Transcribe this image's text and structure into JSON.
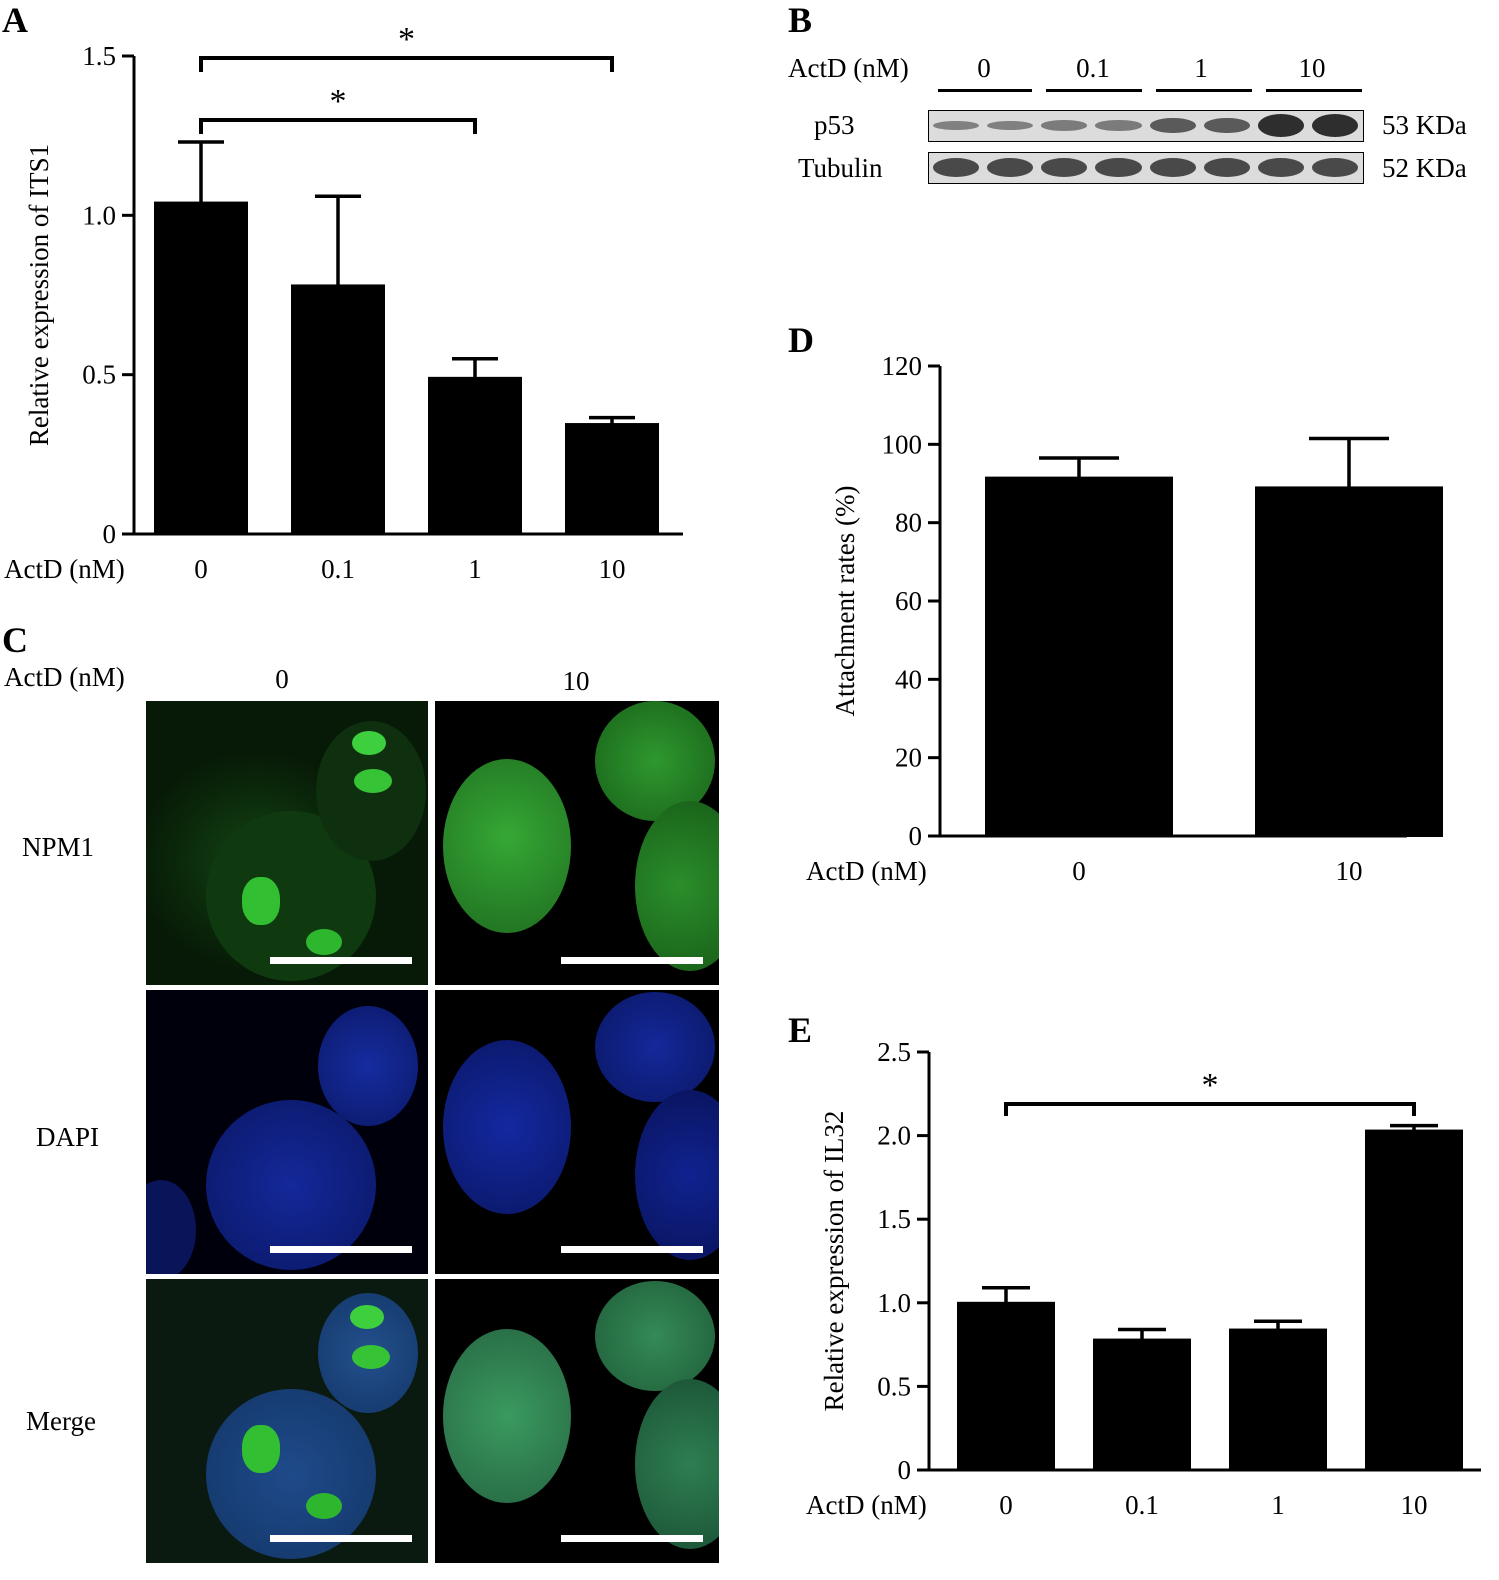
{
  "panels": {
    "A": "A",
    "B": "B",
    "C": "C",
    "D": "D",
    "E": "E"
  },
  "treatment_label": "ActD (nM)",
  "chart_data": [
    {
      "id": "A",
      "type": "bar",
      "categories": [
        "0",
        "0.1",
        "1",
        "10"
      ],
      "values": [
        1.04,
        0.78,
        0.49,
        0.345
      ],
      "errors": [
        0.19,
        0.28,
        0.06,
        0.02
      ],
      "title": "",
      "xlabel": "ActD (nM)",
      "ylabel": "Relative expression of ITS1",
      "ylim": [
        0,
        1.5
      ],
      "yticks": [
        "0",
        "0.5",
        "1.0",
        "1.5"
      ],
      "yticks_values": [
        0,
        0.5,
        1.0,
        1.5
      ],
      "bar_color": "#000000",
      "significance": [
        {
          "from": 0,
          "to": 2,
          "label": "*"
        },
        {
          "from": 0,
          "to": 3,
          "label": "*"
        }
      ]
    },
    {
      "id": "D",
      "type": "bar",
      "categories": [
        "0",
        "10"
      ],
      "values": [
        91.5,
        89
      ],
      "errors": [
        5,
        12.5
      ],
      "title": "",
      "xlabel": "ActD (nM)",
      "ylabel": "Attachment rates (%)",
      "ylim": [
        0,
        120
      ],
      "yticks": [
        "0",
        "20",
        "40",
        "60",
        "80",
        "100",
        "120"
      ],
      "yticks_values": [
        0,
        20,
        40,
        60,
        80,
        100,
        120
      ],
      "bar_color": "#000000",
      "significance": []
    },
    {
      "id": "E",
      "type": "bar",
      "categories": [
        "0",
        "0.1",
        "1",
        "10"
      ],
      "values": [
        1.0,
        0.78,
        0.84,
        2.03
      ],
      "errors": [
        0.09,
        0.06,
        0.05,
        0.03
      ],
      "title": "",
      "xlabel": "ActD (nM)",
      "ylabel": "Relative expression of IL32",
      "ylim": [
        0,
        2.5
      ],
      "yticks": [
        "0",
        "0.5",
        "1.0",
        "1.5",
        "2.0",
        "2.5"
      ],
      "yticks_values": [
        0,
        0.5,
        1.0,
        1.5,
        2.0,
        2.5
      ],
      "bar_color": "#000000",
      "significance": [
        {
          "from": 0,
          "to": 3,
          "label": "*"
        }
      ]
    }
  ],
  "western_blot": {
    "conditions": [
      "0",
      "0.1",
      "1",
      "10"
    ],
    "rows": [
      {
        "protein": "p53",
        "size": "53 KDa",
        "intensity": [
          0.2,
          0.25,
          0.55,
          0.95
        ]
      },
      {
        "protein": "Tubulin",
        "size": "52 KDa",
        "intensity": [
          0.7,
          0.7,
          0.7,
          0.7
        ]
      }
    ]
  },
  "microscopy": {
    "conditions": [
      "0",
      "10"
    ],
    "rows": [
      "NPM1",
      "DAPI",
      "Merge"
    ],
    "channel_colors": {
      "NPM1": "#00c800",
      "DAPI": "#1428b4",
      "Merge": "#3c9678"
    }
  }
}
